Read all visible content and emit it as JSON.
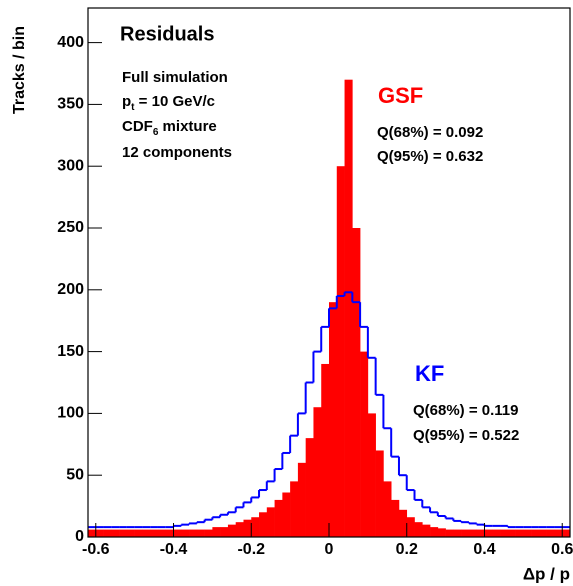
{
  "chart_data": {
    "type": "histogram",
    "title": "Residuals",
    "x_label": "Δp / p",
    "y_label": "Tracks / bin",
    "xlim": [
      -0.62,
      0.62
    ],
    "ylim": [
      0,
      428
    ],
    "xticks": [
      -0.6,
      -0.4,
      -0.2,
      0,
      0.2,
      0.4,
      0.6
    ],
    "yticks": [
      0,
      50,
      100,
      150,
      200,
      250,
      300,
      350,
      400
    ],
    "bins": [
      -0.62,
      -0.6,
      -0.58,
      -0.56,
      -0.54,
      -0.52,
      -0.5,
      -0.48,
      -0.46,
      -0.44,
      -0.42,
      -0.4,
      -0.38,
      -0.36,
      -0.34,
      -0.32,
      -0.3,
      -0.28,
      -0.26,
      -0.24,
      -0.22,
      -0.2,
      -0.18,
      -0.16,
      -0.14,
      -0.12,
      -0.1,
      -0.08,
      -0.06,
      -0.04,
      -0.02,
      0,
      0.02,
      0.04,
      0.06,
      0.08,
      0.1,
      0.12,
      0.14,
      0.16,
      0.18,
      0.2,
      0.22,
      0.24,
      0.26,
      0.28,
      0.3,
      0.32,
      0.34,
      0.36,
      0.38,
      0.4,
      0.42,
      0.44,
      0.46,
      0.48,
      0.5,
      0.52,
      0.54,
      0.56,
      0.58,
      0.6,
      0.62
    ],
    "series": [
      {
        "name": "GSF",
        "color": "#ff0000",
        "style": "filled",
        "values": [
          6,
          6,
          6,
          6,
          6,
          6,
          6,
          6,
          6,
          6,
          6,
          6,
          6,
          6,
          6,
          6,
          8,
          8,
          10,
          12,
          14,
          16,
          20,
          24,
          30,
          36,
          45,
          60,
          80,
          105,
          140,
          190,
          300,
          370,
          250,
          150,
          100,
          70,
          45,
          30,
          22,
          16,
          12,
          10,
          8,
          7,
          6,
          6,
          6,
          6,
          6,
          6,
          6,
          6,
          6,
          6,
          6,
          6,
          6,
          6,
          6,
          6
        ]
      },
      {
        "name": "KF",
        "color": "#0000ff",
        "style": "outline",
        "values": [
          8,
          8,
          8,
          8,
          8,
          8,
          8,
          8,
          8,
          8,
          8,
          9,
          10,
          11,
          12,
          14,
          16,
          18,
          20,
          24,
          28,
          32,
          38,
          45,
          55,
          68,
          82,
          100,
          125,
          150,
          170,
          185,
          195,
          198,
          190,
          170,
          145,
          115,
          88,
          65,
          50,
          38,
          30,
          24,
          20,
          17,
          15,
          13,
          12,
          11,
          10,
          9,
          9,
          9,
          8,
          8,
          8,
          8,
          8,
          8,
          8,
          8
        ]
      }
    ],
    "annotations": [
      {
        "parts": [
          "Full simulation"
        ]
      },
      {
        "parts": [
          "p",
          "t",
          " = 10 GeV/c"
        ]
      },
      {
        "parts": [
          "CDF",
          "6",
          " mixture"
        ]
      },
      {
        "parts": [
          "12 components"
        ]
      },
      {
        "parts": [
          "Q(68%) = 0.092"
        ]
      },
      {
        "parts": [
          "Q(95%) = 0.632"
        ]
      },
      {
        "parts": [
          "Q(68%) = 0.119"
        ]
      },
      {
        "parts": [
          "Q(95%) = 0.522"
        ]
      }
    ]
  }
}
